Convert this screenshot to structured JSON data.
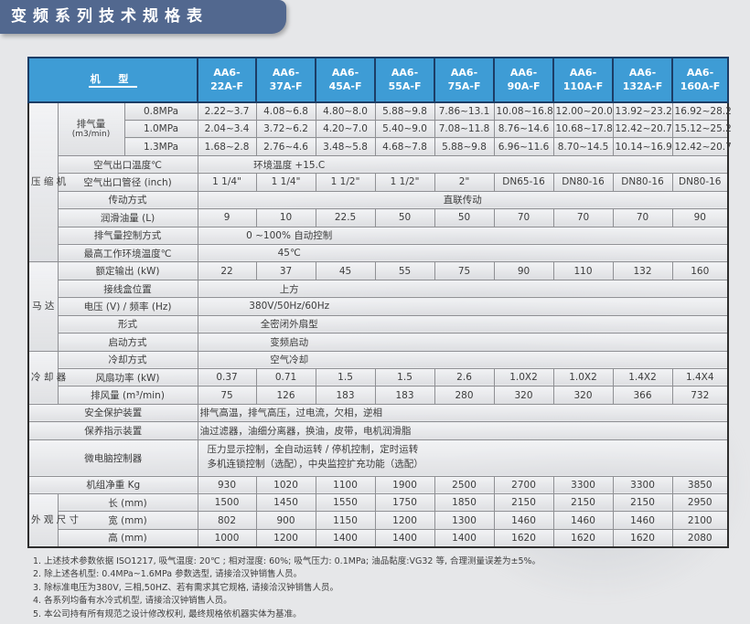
{
  "title": "变频系列技术规格表",
  "colors": {
    "title_bg": "#52688F",
    "header_bg": "#3E9CD5",
    "header_border": "#1C3D66",
    "page_bg": "#E6E7E9"
  },
  "table": {
    "corner_label": "机 型",
    "models": [
      "AA6-22A-F",
      "AA6-37A-F",
      "AA6-45A-F",
      "AA6-55A-F",
      "AA6-75A-F",
      "AA6-90A-F",
      "AA6-110A-F",
      "AA6-132A-F",
      "AA6-160A-F"
    ],
    "sections": [
      {
        "label": "压缩机",
        "rows": 9
      },
      {
        "label": "马达",
        "rows": 5
      },
      {
        "label": "冷却器",
        "rows": 3
      },
      {
        "label": null,
        "rows": 4
      },
      {
        "label": "外观尺寸",
        "rows": 3
      }
    ],
    "rows": [
      {
        "label": "排气量",
        "label2": "(m3/min)",
        "group_rows": 3,
        "sub": "0.8MPa",
        "values": [
          "2.22~3.7",
          "4.08~6.8",
          "4.80~8.0",
          "5.88~9.8",
          "7.86~13.1",
          "10.08~16.8",
          "12.00~20.0",
          "13.92~23.2",
          "16.92~28.2"
        ]
      },
      {
        "sub": "1.0MPa",
        "values": [
          "2.04~3.4",
          "3.72~6.2",
          "4.20~7.0",
          "5.40~9.0",
          "7.08~11.8",
          "8.76~14.6",
          "10.68~17.8",
          "12.42~20.7",
          "15.12~25.2"
        ]
      },
      {
        "sub": "1.3MPa",
        "values": [
          "1.68~2.8",
          "2.76~4.6",
          "3.48~5.8",
          "4.68~7.8",
          "5.88~9.8",
          "6.96~11.6",
          "8.70~14.5",
          "10.14~16.9",
          "12.42~20.7"
        ]
      },
      {
        "label": "空气出口温度℃",
        "merged": "环境温度 +15.C",
        "align": "mc3"
      },
      {
        "label": "空气出口管径 (inch)",
        "values": [
          "1 1/4\"",
          "1 1/4\"",
          "1 1/2\"",
          "1 1/2\"",
          "2\"",
          "DN65-16",
          "DN80-16",
          "DN80-16",
          "DN80-16"
        ]
      },
      {
        "label": "传动方式",
        "merged": "直联传动",
        "align": "full"
      },
      {
        "label": "润滑油量 (L)",
        "values": [
          "9",
          "10",
          "22.5",
          "50",
          "50",
          "70",
          "70",
          "70",
          "90"
        ]
      },
      {
        "label": "排气量控制方式",
        "merged": "0 ~100% 自动控制",
        "align": "mc3"
      },
      {
        "label": "最高工作环境温度℃",
        "merged": "45℃",
        "align": "mc3"
      },
      {
        "label": "额定输出 (kW)",
        "values": [
          "22",
          "37",
          "45",
          "55",
          "75",
          "90",
          "110",
          "132",
          "160"
        ]
      },
      {
        "label": "接线盒位置",
        "merged": "上方",
        "align": "mc3"
      },
      {
        "label": "电压 (V) / 频率 (Hz)",
        "merged": "380V/50Hz/60Hz",
        "align": "mc3"
      },
      {
        "label": "形式",
        "merged": "全密闭外扇型",
        "align": "mc3"
      },
      {
        "label": "启动方式",
        "merged": "变频启动",
        "align": "mc3"
      },
      {
        "label": "冷却方式",
        "merged": "空气冷却",
        "align": "mc3"
      },
      {
        "label": "风扇功率 (kW)",
        "values": [
          "0.37",
          "0.71",
          "1.5",
          "1.5",
          "2.6",
          "1.0X2",
          "1.0X2",
          "1.4X2",
          "1.4X4"
        ]
      },
      {
        "label": "排风量 (m³/min)",
        "values": [
          "75",
          "126",
          "183",
          "183",
          "280",
          "320",
          "320",
          "366",
          "732"
        ]
      },
      {
        "label": "安全保护装置",
        "wide": true,
        "merged": "排气高温，排气高压，过电流，欠相，逆相",
        "align": "mc3"
      },
      {
        "label": "保养指示装置",
        "wide": true,
        "merged": "油过滤器，油细分离器，换油，皮带，电机润滑脂",
        "align": "mc3"
      },
      {
        "label": "微电脑控制器",
        "wide": true,
        "tall": true,
        "merged_lines": [
          "压力显示控制，全自动运转 / 停机控制，定时运转",
          "多机连锁控制（选配），中央监控扩充功能（选配）"
        ],
        "align": "left"
      },
      {
        "label": "机组净重 Kg",
        "wide": true,
        "values": [
          "930",
          "1020",
          "1100",
          "1900",
          "2500",
          "2700",
          "3300",
          "3300",
          "3850"
        ]
      },
      {
        "label": "长 (mm)",
        "center_label": true,
        "values": [
          "1500",
          "1450",
          "1550",
          "1750",
          "1850",
          "2150",
          "2150",
          "2150",
          "2950"
        ]
      },
      {
        "label": "宽 (mm)",
        "center_label": true,
        "values": [
          "802",
          "900",
          "1150",
          "1200",
          "1300",
          "1460",
          "1460",
          "1460",
          "2100"
        ]
      },
      {
        "label": "高 (mm)",
        "center_label": true,
        "values": [
          "1000",
          "1200",
          "1400",
          "1400",
          "1400",
          "1620",
          "1620",
          "1620",
          "2080"
        ]
      }
    ]
  },
  "notes": [
    "1. 上述技术参数依据 ISO1217, 吸气温度: 20℃ ; 相对湿度: 60%; 吸气压力: 0.1MPa; 油品黏度:VG32 等, 合理测量误差为±5%。",
    "2. 除上述各机型: 0.4MPa~1.6MPa 参数选型, 请接洽汉钟销售人员。",
    "3. 除标准电压为380V, 三相,50HZ、若有需求其它规格, 请接洽汉钟销售人员。",
    "4. 各系列均备有水冷式机型, 请接洽汉钟销售人员。",
    "5. 本公司持有所有规范之设计修改权利, 最终规格依机器实体为基准。"
  ]
}
